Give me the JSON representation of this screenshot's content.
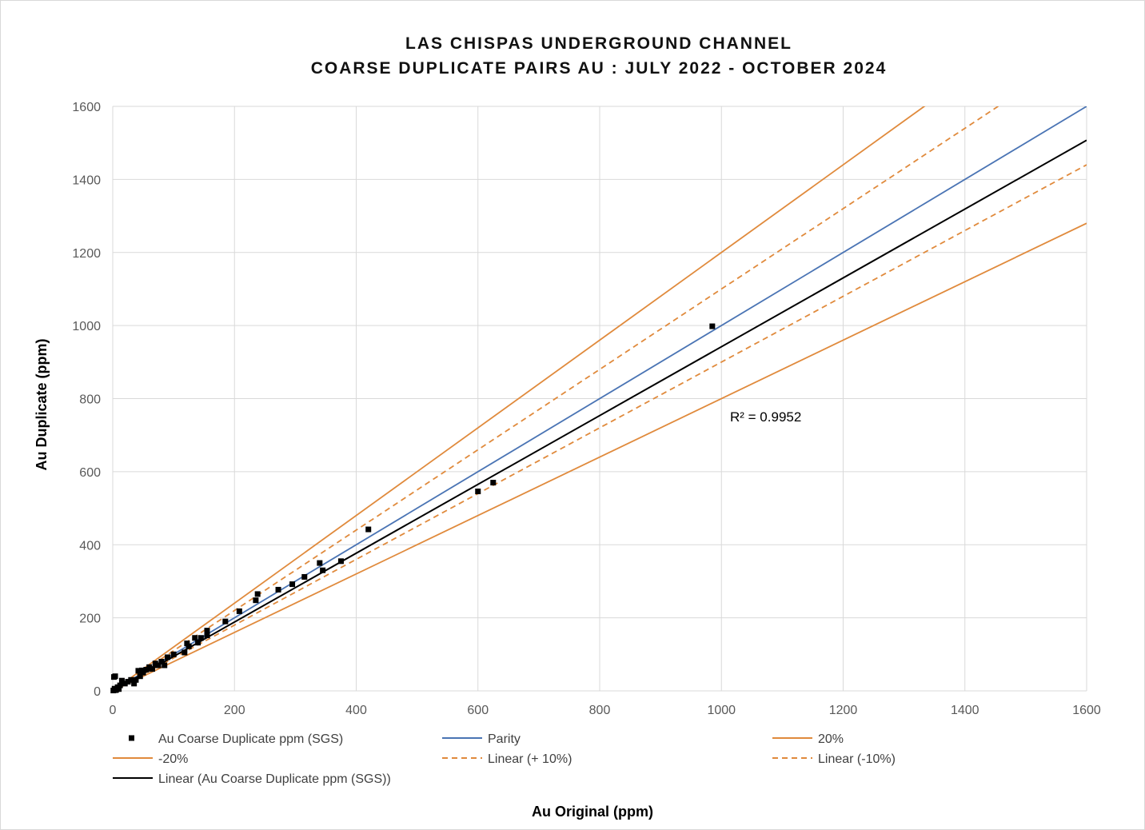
{
  "chart_data": {
    "type": "scatter",
    "title": [
      "LAS CHISPAS UNDERGROUND CHANNEL",
      "COARSE DUPLICATE PAIRS AU : JULY 2022 -  OCTOBER 2024"
    ],
    "xlabel": "Au Original (ppm)",
    "ylabel": "Au Duplicate (ppm)",
    "xlim": [
      0,
      1600
    ],
    "ylim": [
      0,
      1600
    ],
    "x_ticks": [
      "0",
      "200",
      "400",
      "600",
      "800",
      "1000",
      "1200",
      "1400",
      "1600"
    ],
    "y_ticks": [
      "0",
      "200",
      "400",
      "600",
      "800",
      "1000",
      "1200",
      "1400",
      "1600"
    ],
    "grid": true,
    "legend_position": "bottom",
    "r_squared_label": "R² = 0.9952",
    "scatter_series": {
      "name": "Au Coarse Duplicate ppm (SGS)",
      "color": "#000000",
      "points": [
        [
          985,
          998
        ],
        [
          625,
          570
        ],
        [
          600,
          546
        ],
        [
          420,
          442
        ],
        [
          375,
          355
        ],
        [
          345,
          330
        ],
        [
          340,
          350
        ],
        [
          315,
          312
        ],
        [
          295,
          292
        ],
        [
          272,
          277
        ],
        [
          238,
          265
        ],
        [
          235,
          248
        ],
        [
          208,
          218
        ],
        [
          185,
          190
        ],
        [
          155,
          165
        ],
        [
          155,
          152
        ],
        [
          145,
          145
        ],
        [
          140,
          132
        ],
        [
          135,
          145
        ],
        [
          125,
          122
        ],
        [
          122,
          130
        ],
        [
          118,
          105
        ],
        [
          100,
          100
        ],
        [
          90,
          92
        ],
        [
          85,
          70
        ],
        [
          80,
          80
        ],
        [
          75,
          70
        ],
        [
          70,
          75
        ],
        [
          65,
          60
        ],
        [
          60,
          65
        ],
        [
          55,
          58
        ],
        [
          50,
          50
        ],
        [
          48,
          56
        ],
        [
          45,
          40
        ],
        [
          42,
          55
        ],
        [
          38,
          30
        ],
        [
          35,
          20
        ],
        [
          30,
          30
        ],
        [
          25,
          25
        ],
        [
          20,
          20
        ],
        [
          15,
          28
        ],
        [
          12,
          15
        ],
        [
          10,
          5
        ],
        [
          8,
          10
        ],
        [
          5,
          2
        ],
        [
          4,
          40
        ],
        [
          2,
          38
        ],
        [
          3,
          6
        ],
        [
          1,
          1
        ],
        [
          6,
          4
        ]
      ]
    },
    "line_series": [
      {
        "name": "Parity",
        "slope": 1.0,
        "color": "#4a74b4",
        "dashed": false
      },
      {
        "name": "20%",
        "slope": 1.2,
        "color": "#e08a3c",
        "dashed": false
      },
      {
        "name": "-20%",
        "slope": 0.8,
        "color": "#e08a3c",
        "dashed": false
      },
      {
        "name": "Linear (+ 10%)",
        "slope": 1.1,
        "color": "#e08a3c",
        "dashed": true
      },
      {
        "name": "Linear (-10%)",
        "slope": 0.9,
        "color": "#e08a3c",
        "dashed": true
      },
      {
        "name": "Linear (Au Coarse Duplicate ppm (SGS))",
        "slope": 0.942,
        "color": "#000000",
        "dashed": false
      }
    ]
  }
}
